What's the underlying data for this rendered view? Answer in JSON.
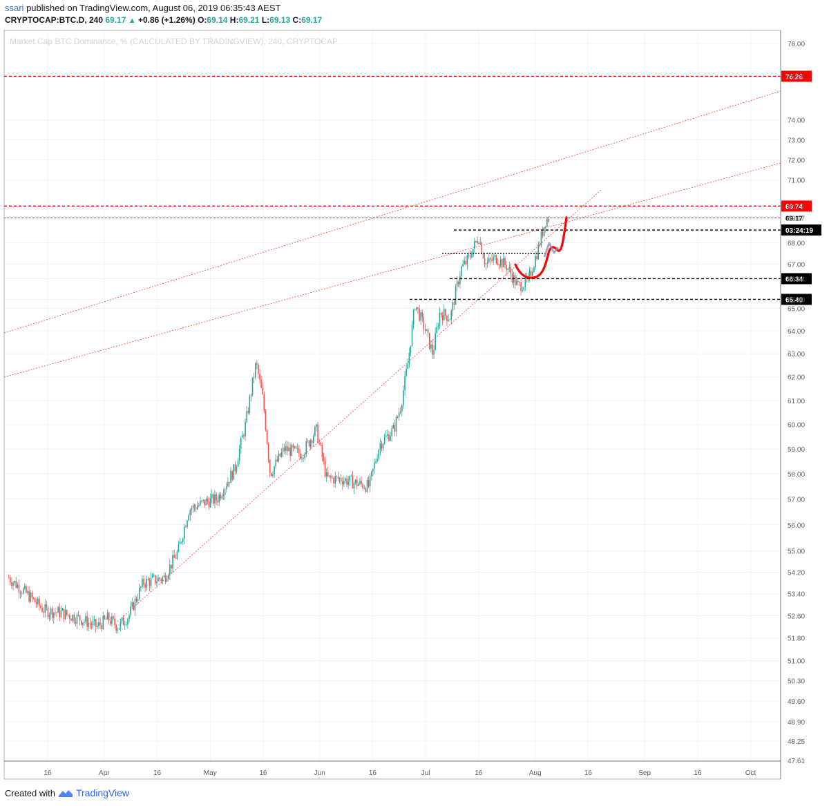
{
  "header": {
    "publisher": "ssari",
    "published_text": "published on TradingView.com, August 06, 2019 06:35:43 AEST",
    "symbol": "CRYPTOCAP:BTC.D, 240",
    "last": "69.17",
    "change": "+0.86 (+1.26%)",
    "o_label": "O:",
    "o": "69.14",
    "h_label": "H:",
    "h": "69.21",
    "l_label": "L:",
    "l": "69.13",
    "c_label": "C:",
    "c": "69.17"
  },
  "watermark": "Market Cap BTC Dominance, % (CALCULATED BY TRADINGVIEW), 240, CRYPTOCAP",
  "footer": {
    "created_with": "Created with",
    "brand": "TradingView"
  },
  "colors": {
    "up": "#26a69a",
    "down": "#ef5350",
    "red_line": "#ff0000",
    "grid": "#f0f3fa",
    "axis_text": "#5d606b"
  },
  "chart_data": {
    "type": "candlestick",
    "y_scale": "log",
    "y_ticks": [
      "78.00",
      "76.26",
      "74.00",
      "73.00",
      "72.00",
      "71.00",
      "69.74",
      "69.17",
      "68.00",
      "67.00",
      "66.34",
      "65.40",
      "65.00",
      "64.00",
      "63.00",
      "62.00",
      "61.00",
      "60.00",
      "59.00",
      "58.00",
      "57.00",
      "56.00",
      "55.00",
      "54.20",
      "53.40",
      "52.60",
      "51.80",
      "51.00",
      "50.30",
      "49.60",
      "48.90",
      "48.25",
      "47.61"
    ],
    "x_ticks": [
      "16",
      "Apr",
      "16",
      "May",
      "16",
      "Jun",
      "16",
      "Jul",
      "16",
      "Aug",
      "16",
      "Sep",
      "16",
      "Oct"
    ],
    "series": [
      {
        "points": [
          [
            "2019-03-05",
            54.0
          ],
          [
            "2019-03-10",
            53.4
          ],
          [
            "2019-03-15",
            52.8
          ],
          [
            "2019-03-20",
            52.7
          ],
          [
            "2019-03-25",
            52.5
          ],
          [
            "2019-03-30",
            52.2
          ],
          [
            "2019-04-02",
            52.5
          ],
          [
            "2019-04-05",
            52.2
          ],
          [
            "2019-04-08",
            52.6
          ],
          [
            "2019-04-12",
            53.8
          ],
          [
            "2019-04-18",
            54.0
          ],
          [
            "2019-04-22",
            55.0
          ],
          [
            "2019-04-25",
            56.6
          ],
          [
            "2019-04-30",
            56.9
          ],
          [
            "2019-05-03",
            57.0
          ],
          [
            "2019-05-08",
            58.2
          ],
          [
            "2019-05-11",
            60.0
          ],
          [
            "2019-05-14",
            62.6
          ],
          [
            "2019-05-16",
            61.0
          ],
          [
            "2019-05-18",
            58.0
          ],
          [
            "2019-05-22",
            59.0
          ],
          [
            "2019-05-27",
            58.8
          ],
          [
            "2019-05-31",
            59.8
          ],
          [
            "2019-06-03",
            57.8
          ],
          [
            "2019-06-07",
            57.8
          ],
          [
            "2019-06-12",
            57.6
          ],
          [
            "2019-06-15",
            57.5
          ],
          [
            "2019-06-18",
            59.2
          ],
          [
            "2019-06-22",
            59.8
          ],
          [
            "2019-06-24",
            60.8
          ],
          [
            "2019-06-26",
            62.6
          ],
          [
            "2019-06-28",
            65.2
          ],
          [
            "2019-07-01",
            64.0
          ],
          [
            "2019-07-03",
            63.0
          ],
          [
            "2019-07-05",
            64.8
          ],
          [
            "2019-07-08",
            64.6
          ],
          [
            "2019-07-11",
            66.8
          ],
          [
            "2019-07-13",
            67.2
          ],
          [
            "2019-07-16",
            68.3
          ],
          [
            "2019-07-18",
            67.0
          ],
          [
            "2019-07-21",
            67.3
          ],
          [
            "2019-07-24",
            66.9
          ],
          [
            "2019-07-27",
            66.0
          ],
          [
            "2019-07-30",
            66.2
          ],
          [
            "2019-08-02",
            67.8
          ],
          [
            "2019-08-04",
            69.1
          ],
          [
            "2019-08-05",
            69.17
          ]
        ]
      }
    ],
    "horizontal_levels": [
      {
        "value": "76.26",
        "style": "red dashed"
      },
      {
        "value": "69.74",
        "style": "red dashed"
      },
      {
        "value": "69.17",
        "style": "black dotted (last price)"
      },
      {
        "value": "03:24:19",
        "style": "black dashed (countdown)"
      },
      {
        "value": "66.34",
        "style": "black dashed"
      },
      {
        "value": "65.40",
        "style": "black dashed"
      }
    ],
    "annotations": [
      "rising red dotted trendlines",
      "red hand-drawn projection curve"
    ],
    "grid": true
  }
}
